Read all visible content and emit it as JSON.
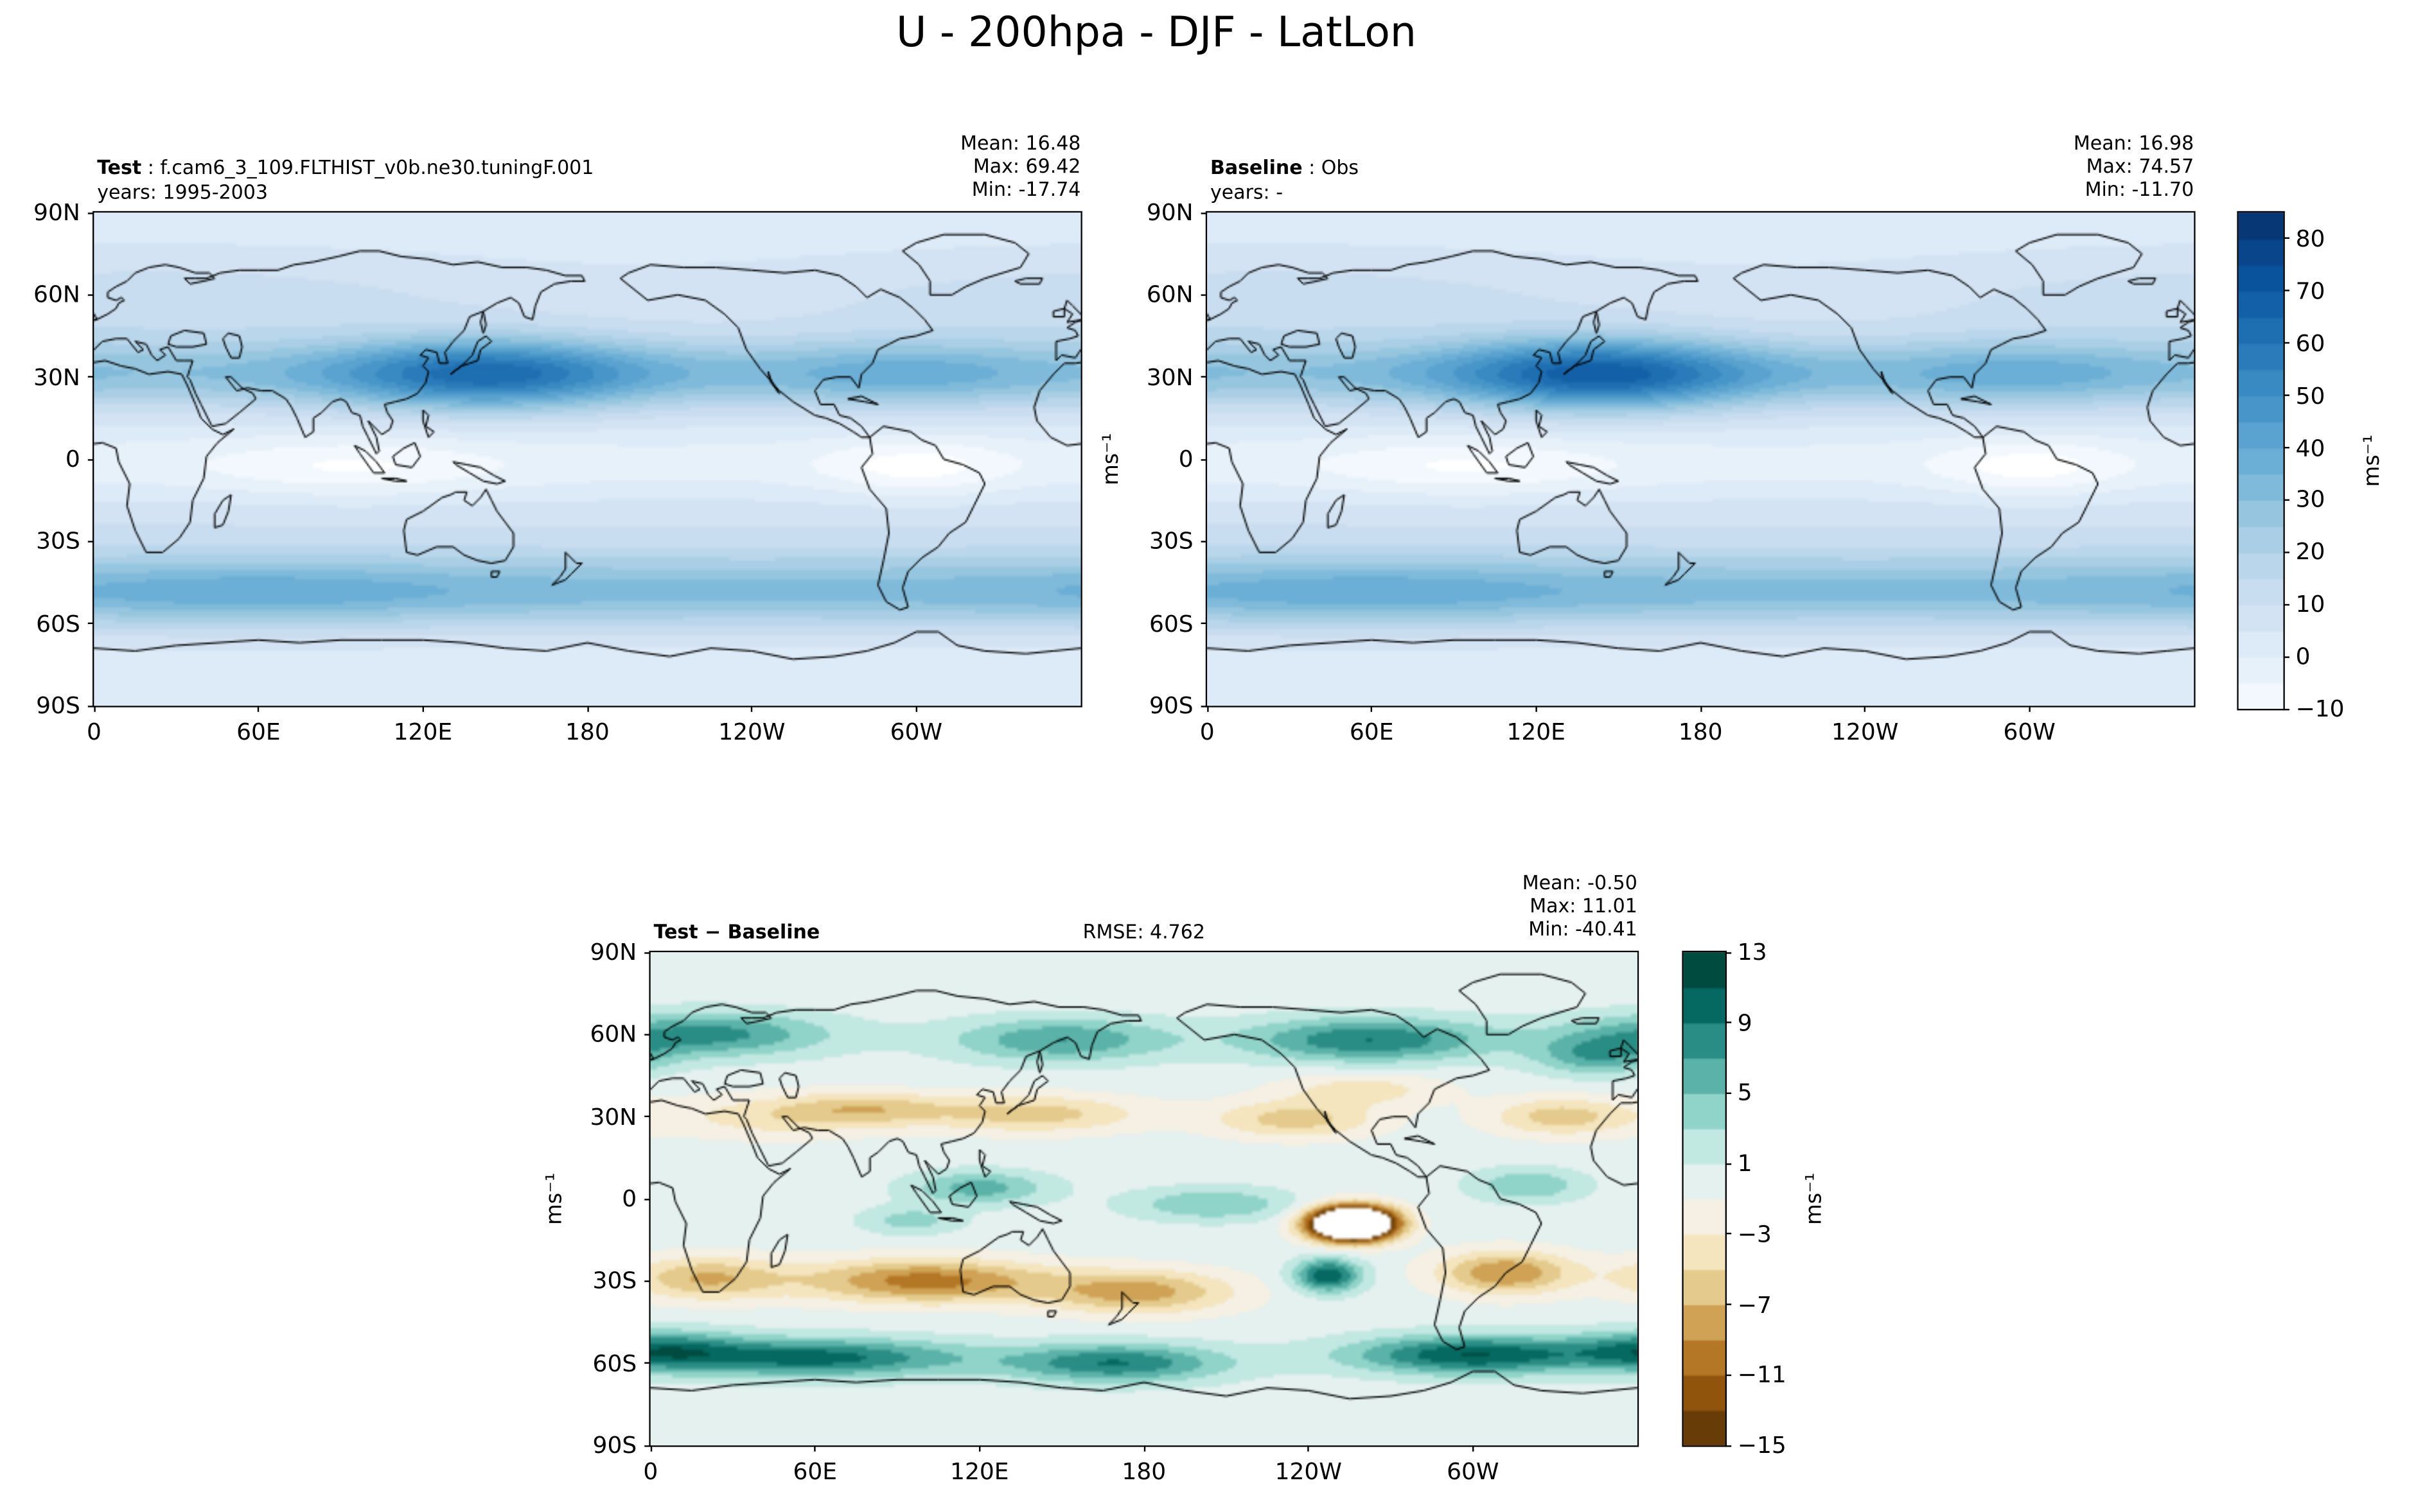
{
  "title": "U - 200hpa - DJF - LatLon",
  "panels": {
    "test": {
      "label": "Test",
      "name": " : f.cam6_3_109.FLTHIST_v0b.ne30.tuningF.001",
      "years": "years: 1995-2003",
      "stats": {
        "mean": "Mean: 16.48",
        "max": "Max: 69.42",
        "min": "Min: -17.74"
      }
    },
    "baseline": {
      "label": "Baseline",
      "name": " : Obs",
      "years": "years: -",
      "stats": {
        "mean": "Mean: 16.98",
        "max": "Max: 74.57",
        "min": "Min: -11.70"
      }
    },
    "diff": {
      "label": "Test − Baseline",
      "rmse": "RMSE: 4.762",
      "stats": {
        "mean": "Mean: -0.50",
        "max": "Max: 11.01",
        "min": "Min: -40.41"
      }
    }
  },
  "axes": {
    "lat_ticks": [
      "90N",
      "60N",
      "30N",
      "0",
      "30S",
      "60S",
      "90S"
    ],
    "lon_ticks": [
      "0",
      "60E",
      "120E",
      "180",
      "120W",
      "60W"
    ],
    "unit_label": "ms⁻¹"
  },
  "colorbars": {
    "main": {
      "ticks": [
        "80",
        "70",
        "60",
        "50",
        "40",
        "30",
        "20",
        "10",
        "0",
        "−10"
      ],
      "label": "ms⁻¹"
    },
    "diff": {
      "ticks": [
        "13",
        "9",
        "5",
        "1",
        "−3",
        "−7",
        "−11",
        "−15"
      ],
      "label": "ms⁻¹"
    }
  },
  "chart_data": [
    {
      "type": "heatmap",
      "panel": "test",
      "title": "Test : f.cam6_3_109.FLTHIST_v0b.ne30.tuningF.001",
      "years": "1995-2003",
      "variable": "U",
      "level_hpa": 200,
      "season": "DJF",
      "projection": "LatLon",
      "units": "ms⁻¹",
      "mean": 16.48,
      "max": 69.42,
      "min": -17.74,
      "lon_range": [
        0,
        360
      ],
      "lat_range": [
        -90,
        90
      ],
      "contour_levels": {
        "min": -10,
        "max": 85,
        "step": 5
      },
      "colormap": "Blues",
      "colorbar_ticks": [
        -10,
        0,
        10,
        20,
        30,
        40,
        50,
        60,
        70,
        80
      ]
    },
    {
      "type": "heatmap",
      "panel": "baseline",
      "title": "Baseline : Obs",
      "years": "-",
      "variable": "U",
      "level_hpa": 200,
      "season": "DJF",
      "projection": "LatLon",
      "units": "ms⁻¹",
      "mean": 16.98,
      "max": 74.57,
      "min": -11.7,
      "lon_range": [
        0,
        360
      ],
      "lat_range": [
        -90,
        90
      ],
      "contour_levels": {
        "min": -10,
        "max": 85,
        "step": 5
      },
      "colormap": "Blues",
      "colorbar_ticks": [
        -10,
        0,
        10,
        20,
        30,
        40,
        50,
        60,
        70,
        80
      ]
    },
    {
      "type": "heatmap",
      "panel": "difference",
      "title": "Test − Baseline",
      "rmse": 4.762,
      "units": "ms⁻¹",
      "mean": -0.5,
      "max": 11.01,
      "min": -40.41,
      "lon_range": [
        0,
        360
      ],
      "lat_range": [
        -90,
        90
      ],
      "contour_levels": {
        "min": -15,
        "max": 13,
        "step": 2
      },
      "colormap": "BrBG",
      "colorbar_ticks": [
        -15,
        -11,
        -7,
        -3,
        1,
        5,
        9,
        13
      ]
    }
  ]
}
